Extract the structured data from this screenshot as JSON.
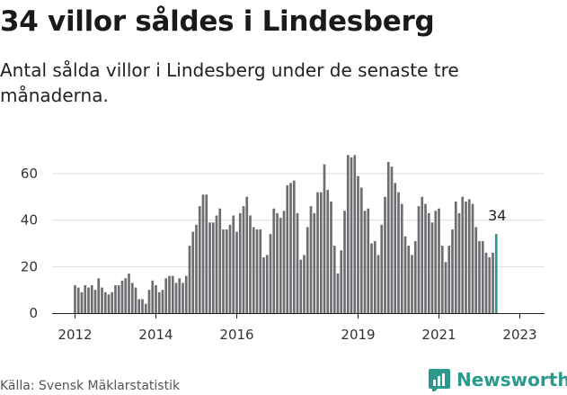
{
  "title": "34 villor såldes i Lindesberg",
  "subtitle": "Antal sålda villor i Lindesberg under de senaste tre månaderna.",
  "source": "Källa: Svensk Mäklarstatistik",
  "brand": {
    "name": "Newsworthy",
    "color": "#2a9a8d"
  },
  "chart_data": {
    "type": "bar",
    "x_start": "2012-01",
    "yticks": [
      0,
      20,
      40,
      60
    ],
    "ylim": [
      0,
      70
    ],
    "xticks": [
      "2012",
      "2014",
      "2016",
      "2019",
      "2021",
      "2023"
    ],
    "bar_color": "#6e6e72",
    "highlight_color": "#2a9a8d",
    "highlight_label": "34",
    "values": [
      12,
      11,
      9,
      12,
      11,
      12,
      10,
      15,
      11,
      9,
      8,
      9,
      12,
      12,
      14,
      15,
      17,
      13,
      11,
      6,
      6,
      4,
      10,
      14,
      12,
      9,
      10,
      15,
      16,
      16,
      13,
      15,
      13,
      16,
      29,
      35,
      38,
      46,
      51,
      51,
      39,
      39,
      42,
      45,
      36,
      36,
      38,
      42,
      35,
      43,
      46,
      50,
      42,
      37,
      36,
      36,
      24,
      25,
      34,
      45,
      43,
      41,
      44,
      55,
      56,
      57,
      43,
      23,
      25,
      37,
      46,
      43,
      52,
      52,
      64,
      53,
      48,
      29,
      17,
      27,
      44,
      68,
      67,
      68,
      59,
      54,
      44,
      45,
      30,
      31,
      25,
      38,
      50,
      65,
      63,
      56,
      52,
      47,
      33,
      29,
      25,
      31,
      46,
      50,
      47,
      43,
      39,
      44,
      45,
      29,
      22,
      29,
      36,
      48,
      43,
      50,
      48,
      49,
      47,
      37,
      31,
      31,
      26,
      24,
      26,
      34
    ]
  }
}
